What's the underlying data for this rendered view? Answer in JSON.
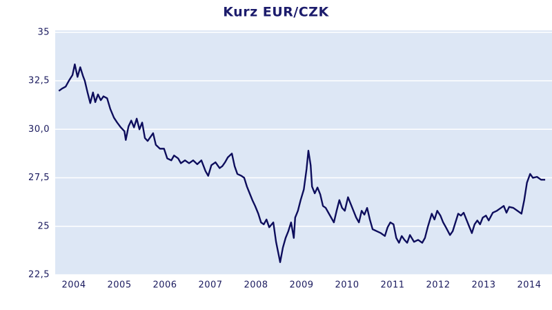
{
  "chart_data": {
    "type": "line",
    "title": "Kurz EUR/CZK",
    "x": [
      2003.67,
      2003.74,
      2003.82,
      2003.89,
      2003.97,
      2004.02,
      2004.08,
      2004.14,
      2004.2,
      2004.24,
      2004.3,
      2004.36,
      2004.42,
      2004.47,
      2004.53,
      2004.59,
      2004.65,
      2004.73,
      2004.8,
      2004.88,
      2004.95,
      2005.03,
      2005.11,
      2005.14,
      2005.2,
      2005.26,
      2005.32,
      2005.38,
      2005.44,
      2005.5,
      2005.56,
      2005.62,
      2005.68,
      2005.74,
      2005.8,
      2005.89,
      2005.98,
      2006.05,
      2006.14,
      2006.2,
      2006.29,
      2006.35,
      2006.44,
      2006.53,
      2006.62,
      2006.71,
      2006.8,
      2006.89,
      2006.95,
      2007.02,
      2007.11,
      2007.2,
      2007.26,
      2007.32,
      2007.38,
      2007.47,
      2007.53,
      2007.59,
      2007.68,
      2007.74,
      2007.8,
      2007.86,
      2007.92,
      2007.98,
      2008.05,
      2008.11,
      2008.17,
      2008.23,
      2008.29,
      2008.38,
      2008.44,
      2008.5,
      2008.53,
      2008.59,
      2008.65,
      2008.71,
      2008.77,
      2008.83,
      2008.86,
      2008.92,
      2008.98,
      2009.05,
      2009.11,
      2009.15,
      2009.2,
      2009.23,
      2009.29,
      2009.35,
      2009.41,
      2009.47,
      2009.53,
      2009.59,
      2009.65,
      2009.71,
      2009.77,
      2009.83,
      2009.89,
      2009.95,
      2010.02,
      2010.08,
      2010.14,
      2010.2,
      2010.26,
      2010.32,
      2010.38,
      2010.44,
      2010.5,
      2010.56,
      2010.65,
      2010.74,
      2010.83,
      2010.89,
      2010.95,
      2011.02,
      2011.08,
      2011.14,
      2011.2,
      2011.26,
      2011.32,
      2011.38,
      2011.47,
      2011.56,
      2011.65,
      2011.71,
      2011.77,
      2011.86,
      2011.92,
      2011.98,
      2012.05,
      2012.11,
      2012.17,
      2012.26,
      2012.32,
      2012.38,
      2012.44,
      2012.5,
      2012.56,
      2012.62,
      2012.68,
      2012.74,
      2012.8,
      2012.86,
      2012.92,
      2012.98,
      2013.05,
      2013.11,
      2013.2,
      2013.29,
      2013.38,
      2013.44,
      2013.5,
      2013.56,
      2013.65,
      2013.74,
      2013.83,
      2013.89,
      2013.95,
      2014.02,
      2014.08,
      2014.17,
      2014.26,
      2014.35
    ],
    "values": [
      31.98,
      32.1,
      32.2,
      32.5,
      32.8,
      33.35,
      32.7,
      33.2,
      32.75,
      32.5,
      31.9,
      31.35,
      31.9,
      31.4,
      31.8,
      31.5,
      31.7,
      31.6,
      31.05,
      30.6,
      30.35,
      30.1,
      29.9,
      29.45,
      30.15,
      30.45,
      30.1,
      30.55,
      30.0,
      30.35,
      29.55,
      29.4,
      29.6,
      29.8,
      29.2,
      29.0,
      29.0,
      28.5,
      28.4,
      28.65,
      28.5,
      28.25,
      28.4,
      28.25,
      28.4,
      28.2,
      28.4,
      27.85,
      27.6,
      28.15,
      28.3,
      28.0,
      28.1,
      28.3,
      28.55,
      28.75,
      28.1,
      27.7,
      27.6,
      27.5,
      27.05,
      26.7,
      26.35,
      26.05,
      25.65,
      25.2,
      25.1,
      25.35,
      24.95,
      25.2,
      24.2,
      23.5,
      23.15,
      23.9,
      24.4,
      24.75,
      25.2,
      24.4,
      25.45,
      25.8,
      26.35,
      26.9,
      27.95,
      28.9,
      28.15,
      27.05,
      26.7,
      27.0,
      26.65,
      26.05,
      25.95,
      25.7,
      25.45,
      25.2,
      25.8,
      26.35,
      25.95,
      25.8,
      26.5,
      26.15,
      25.8,
      25.45,
      25.2,
      25.8,
      25.6,
      25.95,
      25.35,
      24.85,
      24.75,
      24.65,
      24.5,
      24.95,
      25.2,
      25.1,
      24.4,
      24.15,
      24.5,
      24.3,
      24.15,
      24.55,
      24.2,
      24.3,
      24.15,
      24.4,
      24.95,
      25.65,
      25.35,
      25.8,
      25.55,
      25.2,
      24.95,
      24.55,
      24.75,
      25.2,
      25.65,
      25.55,
      25.7,
      25.35,
      25.0,
      24.65,
      25.1,
      25.3,
      25.1,
      25.45,
      25.55,
      25.3,
      25.7,
      25.8,
      25.95,
      26.05,
      25.7,
      26.0,
      25.95,
      25.8,
      25.65,
      26.35,
      27.25,
      27.7,
      27.5,
      27.55,
      27.4,
      27.4
    ],
    "color": "#0d0d5c",
    "xlim": [
      2003.59,
      2014.5
    ],
    "xticks": [
      2004,
      2005,
      2006,
      2007,
      2008,
      2009,
      2010,
      2011,
      2012,
      2013,
      2014
    ],
    "ylim": [
      22.5,
      35.1
    ],
    "yticks": [
      {
        "value": 22.5,
        "label": "22,5"
      },
      25,
      {
        "value": 27.5,
        "label": "27,5"
      },
      {
        "value": 30,
        "label": "30,0"
      },
      {
        "value": 32.5,
        "label": "32,5"
      },
      35
    ],
    "grid": true,
    "background": "#dde7f5"
  }
}
